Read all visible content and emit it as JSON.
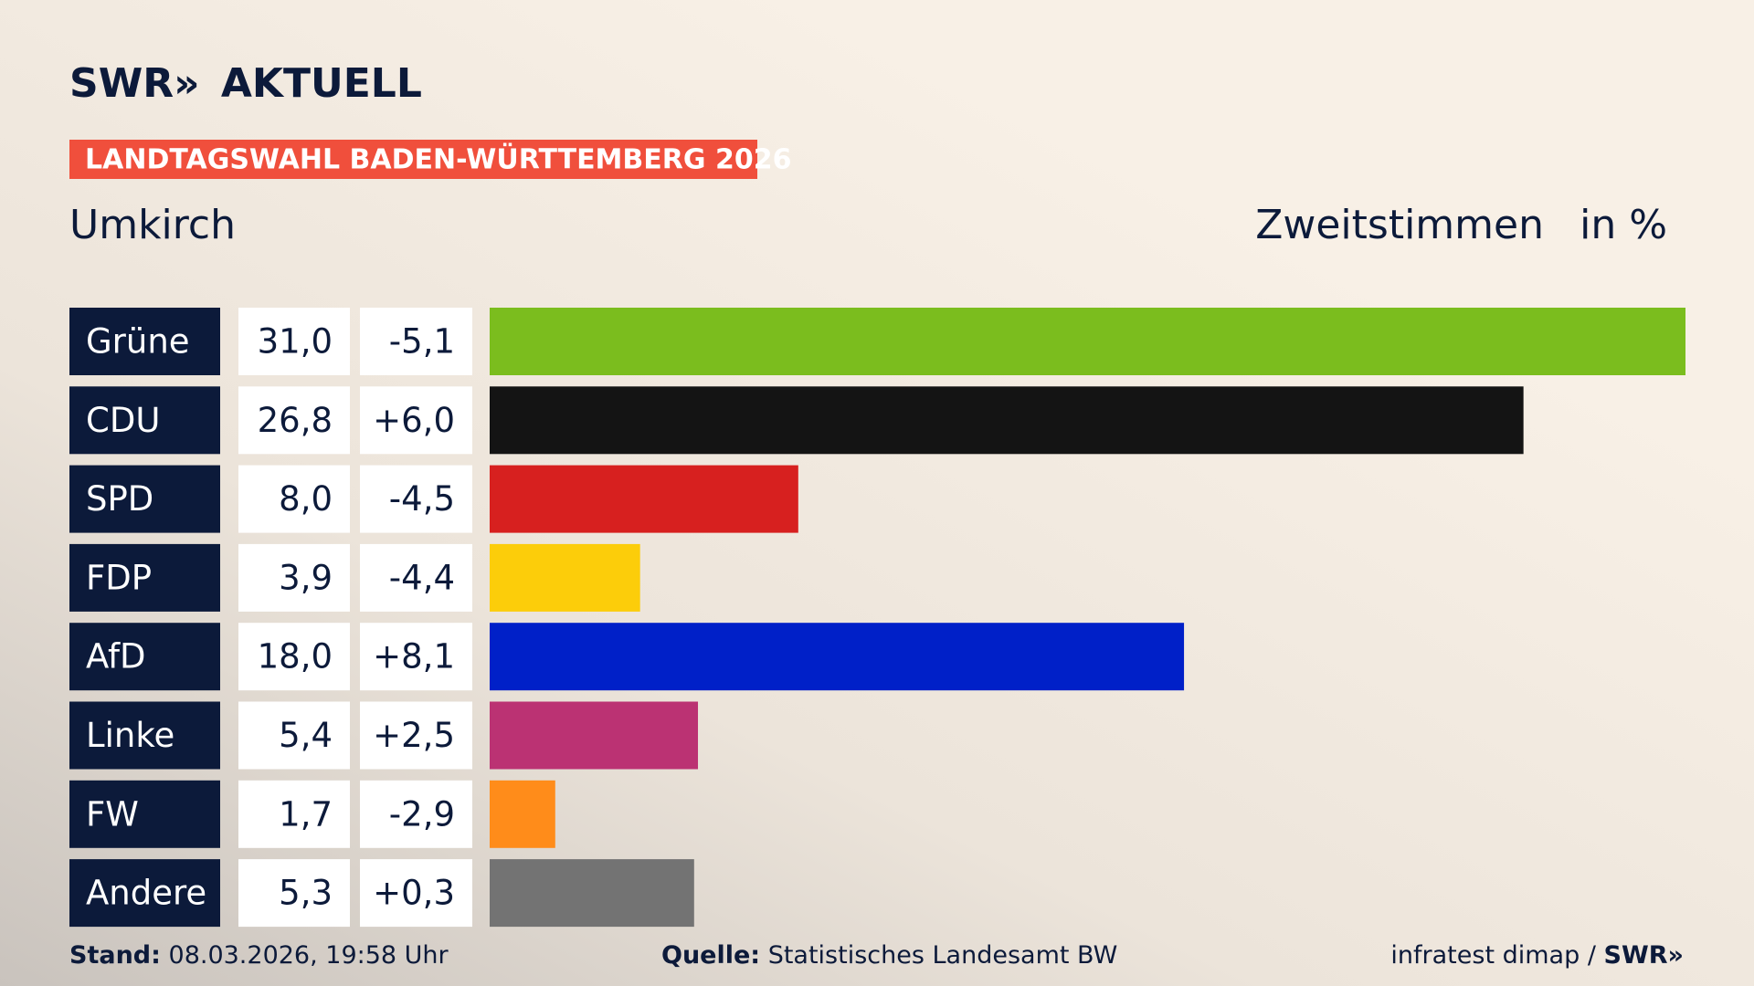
{
  "chart_data": {
    "type": "bar",
    "brand": [
      "SWR»",
      "AKTUELL"
    ],
    "banner": "LANDTAGSWAHL BADEN-WÜRTTEMBERG 2026",
    "title": "Umkirch",
    "subtitle": "Zweitstimmen",
    "unit_label": "in %",
    "categories": [
      "Grüne",
      "CDU",
      "SPD",
      "FDP",
      "AfD",
      "Linke",
      "FW",
      "Andere"
    ],
    "values": [
      31.0,
      26.8,
      8.0,
      3.9,
      18.0,
      5.4,
      1.7,
      5.3
    ],
    "value_labels": [
      "31,0",
      "26,8",
      "8,0",
      "3,9",
      "18,0",
      "5,4",
      "1,7",
      "5,3"
    ],
    "changes": [
      -5.1,
      6.0,
      -4.5,
      -4.4,
      8.1,
      2.5,
      -2.9,
      0.3
    ],
    "change_labels": [
      "-5,1",
      "+6,0",
      "-4,5",
      "-4,4",
      "+8,1",
      "+2,5",
      "-2,9",
      "+0,3"
    ],
    "colors": [
      "#7bbd1e",
      "#141414",
      "#d7201f",
      "#fccd0a",
      "#0020c8",
      "#bb3273",
      "#ff8c1a",
      "#737373"
    ],
    "footer": {
      "stand_label": "Stand:",
      "stand": "08.03.2026, 19:58 Uhr",
      "source_label": "Quelle:",
      "source": "Statistisches Landesamt BW",
      "credit": "infratest dimap /",
      "credit_brand": "SWR»"
    }
  }
}
